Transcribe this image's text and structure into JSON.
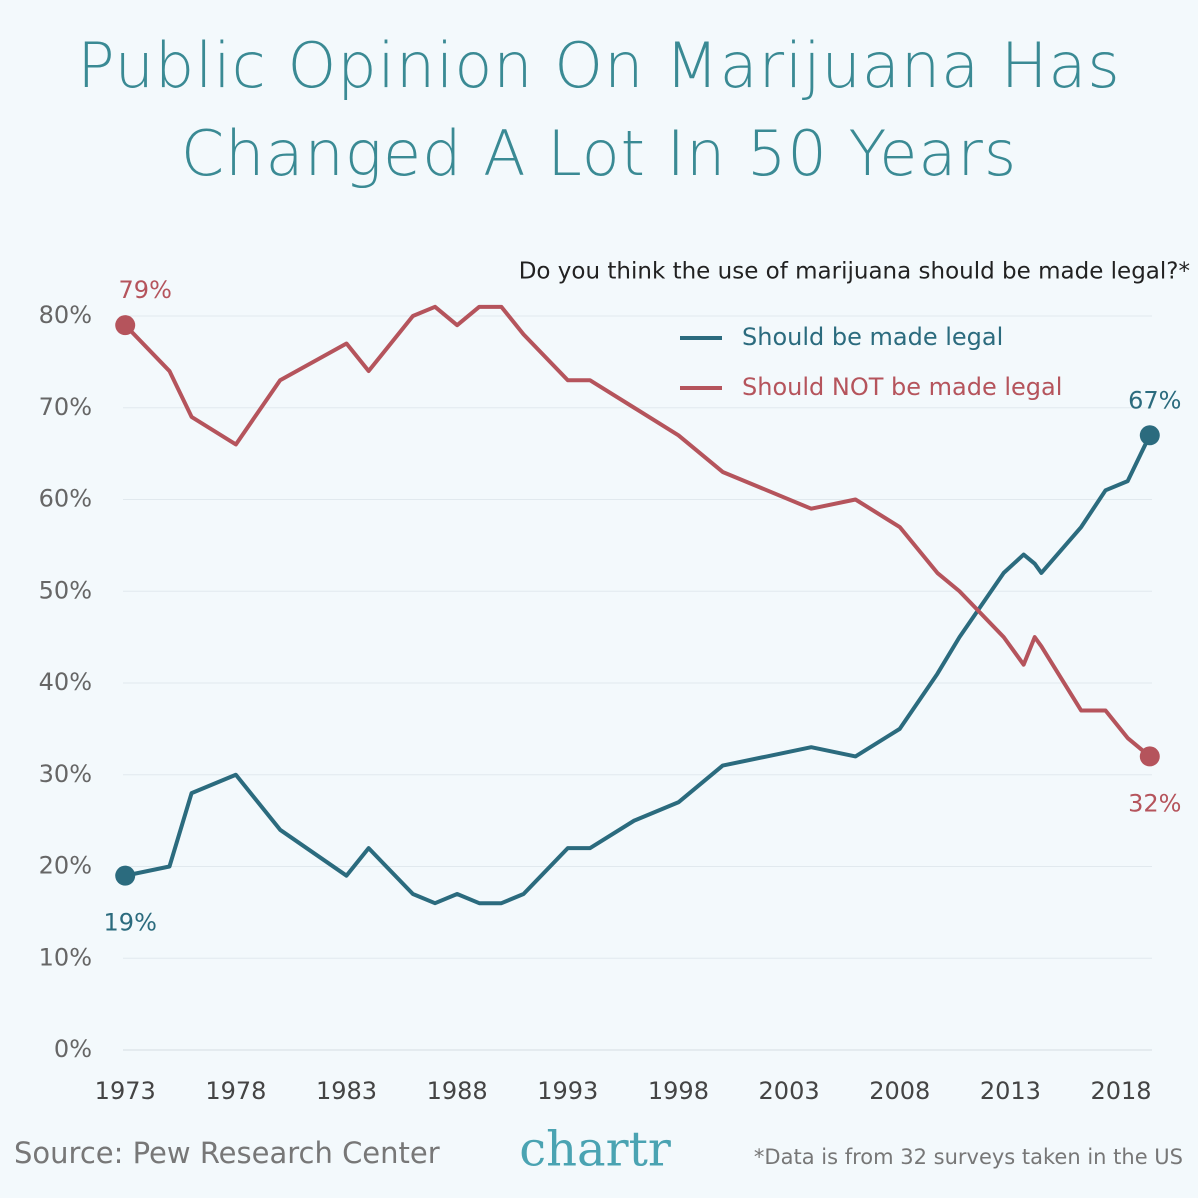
{
  "chart_data": {
    "type": "line",
    "title": "Public Opinion On Marijuana Has Changed A Lot In 50 Years",
    "subtitle": "Do you think the use of marijuana should be made legal?*",
    "x": [
      1973,
      1975,
      1976,
      1978,
      1980,
      1983,
      1984,
      1986,
      1987,
      1988,
      1989,
      1990,
      1991,
      1993,
      1994,
      1996,
      1998,
      2000,
      2002,
      2004,
      2006,
      2008,
      2009.7,
      2010.7,
      2012.7,
      2013.6,
      2014.1,
      2014.4,
      2016.2,
      2017.3,
      2018.3,
      2019.3
    ],
    "series": [
      {
        "name": "Should be made legal",
        "color": "#2b6b7e",
        "values": [
          19,
          20,
          28,
          30,
          24,
          19,
          22,
          17,
          16,
          17,
          16,
          16,
          17,
          22,
          22,
          25,
          27,
          31,
          32,
          33,
          32,
          35,
          41,
          45,
          52,
          54,
          53,
          52,
          57,
          61,
          62,
          67
        ],
        "value_labels": [
          "19%",
          null,
          null,
          null,
          null,
          null,
          null,
          null,
          null,
          null,
          null,
          null,
          null,
          null,
          null,
          null,
          null,
          null,
          null,
          null,
          null,
          null,
          null,
          null,
          null,
          null,
          null,
          null,
          null,
          null,
          null,
          "67%"
        ]
      },
      {
        "name": "Should NOT be made legal",
        "color": "#b5545c",
        "values": [
          79,
          74,
          69,
          66,
          73,
          77,
          74,
          80,
          81,
          79,
          81,
          81,
          78,
          73,
          73,
          70,
          67,
          63,
          61,
          59,
          60,
          57,
          52,
          50,
          45,
          42,
          45,
          44,
          37,
          37,
          34,
          32
        ],
        "value_labels": [
          "79%",
          null,
          null,
          null,
          null,
          null,
          null,
          null,
          null,
          null,
          null,
          null,
          null,
          null,
          null,
          null,
          null,
          null,
          null,
          null,
          null,
          null,
          null,
          null,
          null,
          null,
          null,
          null,
          null,
          null,
          null,
          "32%"
        ]
      }
    ],
    "xlim": [
      1972.9,
      2019.4
    ],
    "xticks": [
      1973,
      1978,
      1983,
      1988,
      1993,
      1998,
      2003,
      2008,
      2013,
      2018
    ],
    "ylim": [
      0,
      80
    ],
    "yticks": [
      {
        "value": 0,
        "label": "0%"
      },
      {
        "value": 10,
        "label": "10%"
      },
      {
        "value": 20,
        "label": "20%"
      },
      {
        "value": 30,
        "label": "30%"
      },
      {
        "value": 40,
        "label": "40%"
      },
      {
        "value": 50,
        "label": "50%"
      },
      {
        "value": 60,
        "label": "60%"
      },
      {
        "value": 70,
        "label": "70%"
      },
      {
        "value": 80,
        "label": "80%"
      }
    ],
    "grid": true,
    "legend": "top-right",
    "source": "Source: Pew Research Center",
    "brand": "chartr",
    "footnote": "*Data is from 32 surveys taken in the US"
  }
}
